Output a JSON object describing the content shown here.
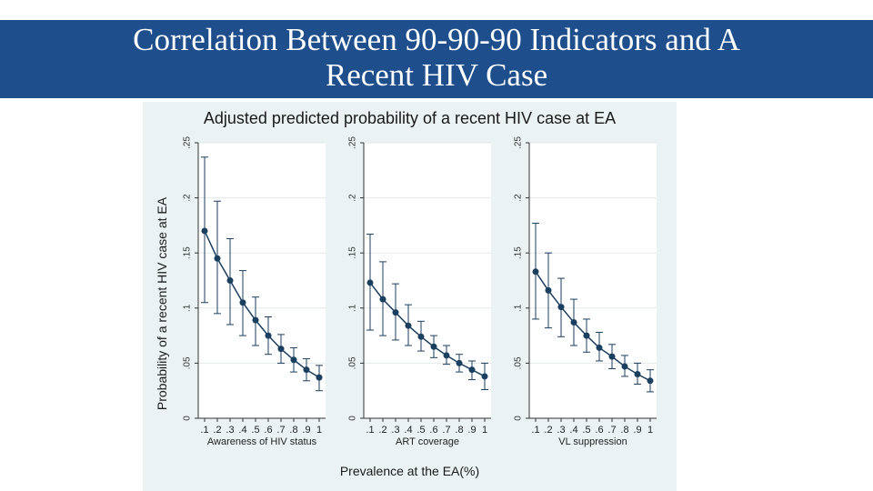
{
  "slide": {
    "title": "Correlation Between 90-90-90 Indicators and A\nRecent HIV Case"
  },
  "colors": {
    "title_bar": "#1f4e8c",
    "figure_bg": "#eaf2f3",
    "series": "#1b3f5e"
  },
  "chart_data": {
    "type": "line",
    "title": "Adjusted predicted probability of a recent HIV case at EA",
    "xlabel": "Prevalence at the EA(%)",
    "ylabel": "Probability of a recent HIV case at EA",
    "ylim": [
      0,
      0.25
    ],
    "yticks": [
      0,
      0.05,
      0.1,
      0.15,
      0.2,
      0.25
    ],
    "ytick_labels": [
      "0",
      ".05",
      ".1",
      ".15",
      ".2",
      ".25"
    ],
    "xticks": [
      0.1,
      0.2,
      0.3,
      0.4,
      0.5,
      0.6,
      0.7,
      0.8,
      0.9,
      1
    ],
    "xtick_labels": [
      ".1",
      ".2",
      ".3",
      ".4",
      ".5",
      ".6",
      ".7",
      ".8",
      ".9",
      "1"
    ],
    "panels": [
      {
        "name": "Awareness of HIV status",
        "x": [
          0.1,
          0.2,
          0.3,
          0.4,
          0.5,
          0.6,
          0.7,
          0.8,
          0.9,
          1
        ],
        "values": [
          0.17,
          0.145,
          0.125,
          0.105,
          0.089,
          0.075,
          0.063,
          0.053,
          0.044,
          0.037
        ],
        "lower": [
          0.105,
          0.095,
          0.085,
          0.075,
          0.066,
          0.058,
          0.05,
          0.042,
          0.034,
          0.025
        ],
        "upper": [
          0.237,
          0.197,
          0.163,
          0.134,
          0.11,
          0.092,
          0.076,
          0.064,
          0.054,
          0.048
        ]
      },
      {
        "name": "ART coverage",
        "x": [
          0.1,
          0.2,
          0.3,
          0.4,
          0.5,
          0.6,
          0.7,
          0.8,
          0.9,
          1
        ],
        "values": [
          0.123,
          0.108,
          0.096,
          0.084,
          0.074,
          0.065,
          0.057,
          0.05,
          0.044,
          0.038
        ],
        "lower": [
          0.08,
          0.075,
          0.071,
          0.066,
          0.061,
          0.055,
          0.049,
          0.042,
          0.035,
          0.026
        ],
        "upper": [
          0.167,
          0.142,
          0.122,
          0.103,
          0.088,
          0.075,
          0.066,
          0.058,
          0.052,
          0.05
        ]
      },
      {
        "name": "VL suppression",
        "x": [
          0.1,
          0.2,
          0.3,
          0.4,
          0.5,
          0.6,
          0.7,
          0.8,
          0.9,
          1
        ],
        "values": [
          0.133,
          0.116,
          0.101,
          0.087,
          0.075,
          0.064,
          0.056,
          0.047,
          0.04,
          0.034
        ],
        "lower": [
          0.09,
          0.082,
          0.074,
          0.066,
          0.06,
          0.052,
          0.045,
          0.038,
          0.031,
          0.024
        ],
        "upper": [
          0.177,
          0.15,
          0.127,
          0.108,
          0.09,
          0.078,
          0.067,
          0.057,
          0.05,
          0.044
        ]
      }
    ]
  }
}
